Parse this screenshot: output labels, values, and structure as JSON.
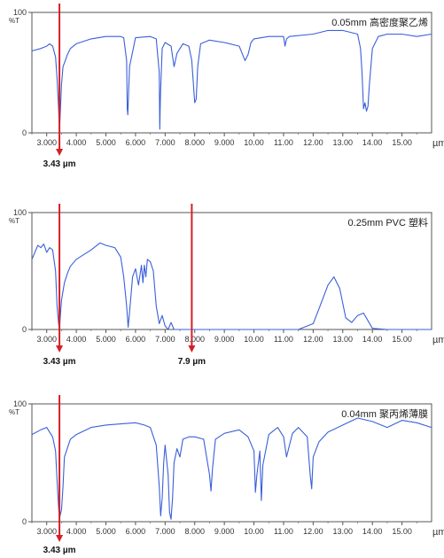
{
  "chart_data": [
    {
      "type": "line",
      "title": "0.05mm 高密度聚乙烯",
      "ylabel": "%T",
      "xunit": "µm",
      "ylim": [
        0,
        100
      ],
      "xlim": [
        2.5,
        16.0
      ],
      "y_ticks": [
        "0",
        "100"
      ],
      "x_ticks": [
        "3.000",
        "4.000",
        "5.000",
        "6.000",
        "7.000",
        "8.000",
        "9.000",
        "10.00",
        "11.00",
        "12.00",
        "13.00",
        "14.00",
        "15.00"
      ],
      "x_tick_values": [
        3,
        4,
        5,
        6,
        7,
        8,
        9,
        10,
        11,
        12,
        13,
        14,
        15
      ],
      "line_color": "#3a5fd9",
      "marker_color": "#d42027",
      "markers": [
        {
          "x": 3.43,
          "label": "3.43 µm"
        }
      ],
      "series": [
        {
          "x": [
            2.5,
            2.8,
            3.0,
            3.1,
            3.2,
            3.3,
            3.35,
            3.4,
            3.43,
            3.46,
            3.5,
            3.55,
            3.6,
            3.7,
            3.8,
            4.0,
            4.5,
            5.0,
            5.5,
            5.6,
            5.7,
            5.72,
            5.74,
            5.8,
            6.0,
            6.5,
            6.7,
            6.8,
            6.82,
            6.84,
            6.9,
            7.0,
            7.2,
            7.3,
            7.4,
            7.6,
            7.8,
            7.9,
            8.0,
            8.05,
            8.1,
            8.2,
            8.5,
            9.0,
            9.5,
            9.7,
            9.8,
            9.9,
            10.0,
            10.5,
            11.0,
            11.05,
            11.1,
            11.2,
            12.0,
            12.5,
            13.0,
            13.5,
            13.6,
            13.65,
            13.7,
            13.75,
            13.8,
            13.85,
            13.9,
            14.0,
            14.2,
            14.5,
            15.0,
            15.5,
            16.0
          ],
          "y": [
            68,
            70,
            72,
            74,
            72,
            63,
            45,
            20,
            2,
            18,
            40,
            55,
            58,
            65,
            70,
            74,
            78,
            80,
            80,
            79,
            60,
            20,
            15,
            55,
            79,
            80,
            78,
            50,
            3,
            30,
            70,
            75,
            72,
            55,
            66,
            74,
            72,
            60,
            25,
            28,
            55,
            74,
            77,
            75,
            72,
            60,
            65,
            75,
            78,
            80,
            80,
            72,
            78,
            80,
            82,
            85,
            85,
            82,
            70,
            50,
            20,
            25,
            18,
            22,
            40,
            70,
            80,
            82,
            82,
            80,
            82
          ]
        }
      ]
    },
    {
      "type": "line",
      "title": "0.25mm PVC 塑料",
      "ylabel": "%T",
      "xunit": "µm",
      "ylim": [
        0,
        100
      ],
      "xlim": [
        2.5,
        16.0
      ],
      "y_ticks": [
        "0",
        "100"
      ],
      "x_ticks": [
        "3.000",
        "4.000",
        "5.000",
        "6.000",
        "7.000",
        "8.000",
        "9.000",
        "10.00",
        "11.00",
        "12.00",
        "13.00",
        "14.00",
        "15.00"
      ],
      "x_tick_values": [
        3,
        4,
        5,
        6,
        7,
        8,
        9,
        10,
        11,
        12,
        13,
        14,
        15
      ],
      "line_color": "#3a5fd9",
      "marker_color": "#d42027",
      "markers": [
        {
          "x": 3.43,
          "label": "3.43 µm"
        },
        {
          "x": 7.9,
          "label": "7.9 µm"
        }
      ],
      "series": [
        {
          "x": [
            2.5,
            2.7,
            2.8,
            2.9,
            3.0,
            3.1,
            3.2,
            3.3,
            3.35,
            3.4,
            3.43,
            3.5,
            3.6,
            3.7,
            3.8,
            4.0,
            4.5,
            4.8,
            5.0,
            5.3,
            5.5,
            5.6,
            5.7,
            5.75,
            5.8,
            5.85,
            5.9,
            6.0,
            6.1,
            6.2,
            6.25,
            6.3,
            6.35,
            6.4,
            6.5,
            6.6,
            6.7,
            6.8,
            6.9,
            7.0,
            7.1,
            7.2,
            7.3,
            7.5,
            8.0,
            9.0,
            10.0,
            11.0,
            11.5,
            12.0,
            12.2,
            12.5,
            12.7,
            12.9,
            13.1,
            13.3,
            13.5,
            13.7,
            14.0,
            14.5,
            15.0,
            15.5,
            16.0
          ],
          "y": [
            60,
            72,
            70,
            73,
            66,
            70,
            68,
            50,
            20,
            5,
            1,
            25,
            40,
            48,
            54,
            60,
            68,
            74,
            72,
            70,
            62,
            45,
            20,
            2,
            15,
            30,
            45,
            52,
            38,
            55,
            40,
            55,
            45,
            60,
            58,
            50,
            20,
            5,
            12,
            3,
            0,
            6,
            0,
            0,
            0,
            0,
            0,
            0,
            0,
            5,
            18,
            38,
            45,
            35,
            10,
            6,
            12,
            14,
            1,
            0,
            0,
            0,
            0
          ]
        }
      ]
    },
    {
      "type": "line",
      "title": "0.04mm 聚丙烯薄膜",
      "ylabel": "%T",
      "xunit": "µm",
      "ylim": [
        0,
        100
      ],
      "xlim": [
        2.5,
        16.0
      ],
      "y_ticks": [
        "0",
        "100"
      ],
      "x_ticks": [
        "3.000",
        "4.000",
        "5.000",
        "6.000",
        "7.000",
        "8.000",
        "9.000",
        "10.00",
        "11.00",
        "12.00",
        "13.00",
        "14.00",
        "15.00"
      ],
      "x_tick_values": [
        3,
        4,
        5,
        6,
        7,
        8,
        9,
        10,
        11,
        12,
        13,
        14,
        15
      ],
      "line_color": "#3a5fd9",
      "marker_color": "#d42027",
      "markers": [
        {
          "x": 3.43,
          "label": "3.43 µm"
        }
      ],
      "series": [
        {
          "x": [
            2.5,
            2.8,
            3.0,
            3.1,
            3.2,
            3.3,
            3.35,
            3.4,
            3.43,
            3.5,
            3.55,
            3.6,
            3.8,
            4.0,
            4.5,
            5.0,
            5.5,
            6.0,
            6.3,
            6.5,
            6.7,
            6.8,
            6.85,
            6.9,
            6.95,
            7.0,
            7.1,
            7.15,
            7.2,
            7.25,
            7.3,
            7.4,
            7.5,
            7.6,
            7.8,
            8.0,
            8.3,
            8.5,
            8.55,
            8.6,
            8.7,
            9.0,
            9.5,
            9.8,
            10.0,
            10.05,
            10.1,
            10.2,
            10.25,
            10.3,
            10.5,
            10.8,
            11.0,
            11.1,
            11.3,
            11.5,
            11.8,
            11.9,
            11.95,
            12.0,
            12.2,
            12.5,
            13.0,
            13.5,
            14.0,
            14.5,
            15.0,
            15.5,
            16.0
          ],
          "y": [
            74,
            78,
            80,
            76,
            72,
            60,
            35,
            12,
            3,
            10,
            30,
            55,
            70,
            74,
            80,
            82,
            83,
            84,
            82,
            80,
            65,
            30,
            5,
            20,
            50,
            65,
            40,
            8,
            2,
            20,
            50,
            62,
            55,
            70,
            72,
            72,
            70,
            40,
            26,
            45,
            70,
            75,
            78,
            72,
            60,
            25,
            40,
            60,
            18,
            48,
            74,
            80,
            72,
            55,
            75,
            80,
            72,
            40,
            28,
            55,
            68,
            76,
            82,
            88,
            85,
            80,
            86,
            84,
            80
          ]
        }
      ]
    }
  ]
}
